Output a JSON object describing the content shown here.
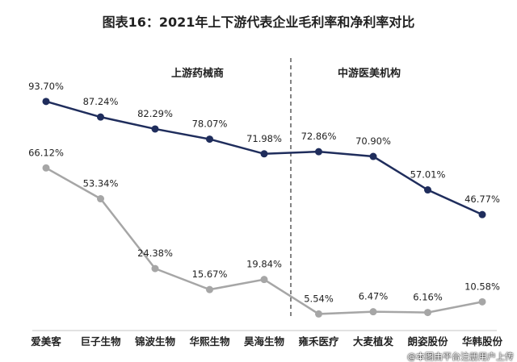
{
  "chart_data": {
    "type": "line",
    "title": "图表16：2021年上下游代表企业毛利率和净利率对比",
    "categories": [
      "爱美客",
      "巨子生物",
      "锦波生物",
      "华熙生物",
      "昊海生物",
      "雍禾医疗",
      "大麦植发",
      "朗姿股份",
      "华韩股份"
    ],
    "groups": [
      {
        "label": "上游药械商",
        "count": 5
      },
      {
        "label": "中游医美机构",
        "count": 4
      }
    ],
    "series": [
      {
        "name": "毛利率",
        "color": "#1f2d5c",
        "values": [
          93.7,
          87.24,
          82.29,
          78.07,
          71.98,
          72.86,
          70.9,
          57.01,
          46.77
        ],
        "labels": [
          "93.70%",
          "87.24%",
          "82.29%",
          "78.07%",
          "71.98%",
          "72.86%",
          "70.90%",
          "57.01%",
          "46.77%"
        ]
      },
      {
        "name": "净利率",
        "color": "#a6a6a6",
        "values": [
          66.12,
          53.34,
          24.38,
          15.67,
          19.84,
          5.54,
          6.47,
          6.16,
          10.58
        ],
        "labels": [
          "66.12%",
          "53.34%",
          "24.38%",
          "15.67%",
          "19.84%",
          "5.54%",
          "6.47%",
          "6.16%",
          "10.58%"
        ]
      }
    ],
    "ylim": [
      0,
      100
    ],
    "grid": false
  },
  "watermark": "@本图由平台注册用户上传"
}
